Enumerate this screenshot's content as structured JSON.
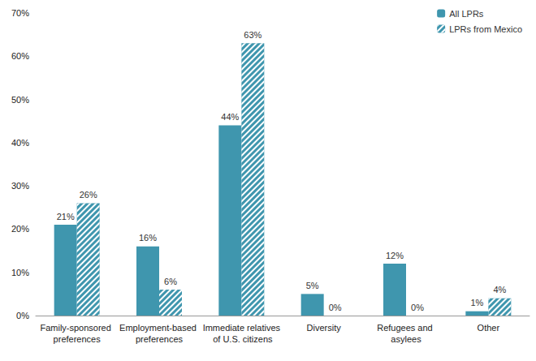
{
  "chart_data": {
    "type": "bar",
    "categories": [
      "Family-sponsored preferences",
      "Employment-based preferences",
      "Immediate relatives of U.S. citizens",
      "Diversity",
      "Refugees and asylees",
      "Other"
    ],
    "series": [
      {
        "name": "All LPRs",
        "color": "#3f96ae",
        "values": [
          21,
          16,
          44,
          5,
          12,
          1
        ],
        "value_labels": [
          "21%",
          "16%",
          "44%",
          "5%",
          "12%",
          "1%"
        ]
      },
      {
        "name": "LPRs from Mexico",
        "color": "#3f96ae",
        "values": [
          26,
          6,
          63,
          0,
          0,
          4
        ],
        "value_labels": [
          "26%",
          "6%",
          "63%",
          "0%",
          "0%",
          "4%"
        ]
      }
    ],
    "ylim": [
      0,
      70
    ],
    "yticks": [
      {
        "value": 0,
        "label": "0%"
      },
      {
        "value": 10,
        "label": "10%"
      },
      {
        "value": 20,
        "label": "20%"
      },
      {
        "value": 30,
        "label": "30%"
      },
      {
        "value": 40,
        "label": "40%"
      },
      {
        "value": 50,
        "label": "50%"
      },
      {
        "value": 60,
        "label": "60%"
      },
      {
        "value": 70,
        "label": "70%"
      }
    ],
    "grid": false,
    "legend": "upper right",
    "data_labels": true
  }
}
